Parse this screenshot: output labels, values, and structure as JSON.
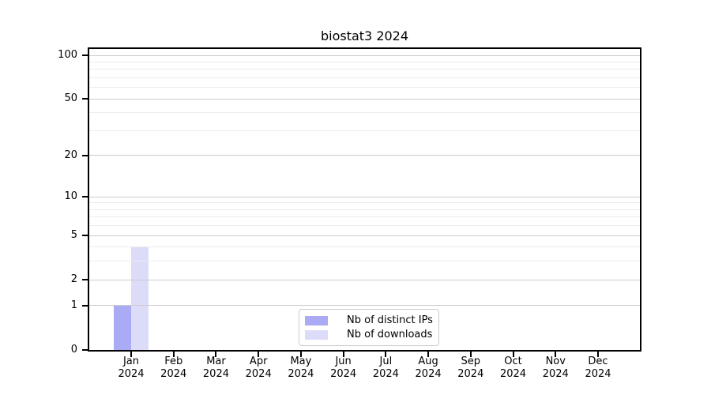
{
  "chart_data": {
    "type": "bar",
    "title": "biostat3 2024",
    "categories": [
      "Jan 2024",
      "Feb 2024",
      "Mar 2024",
      "Apr 2024",
      "May 2024",
      "Jun 2024",
      "Jul 2024",
      "Aug 2024",
      "Sep 2024",
      "Oct 2024",
      "Nov 2024",
      "Dec 2024"
    ],
    "series": [
      {
        "name": "Nb of distinct IPs",
        "color": "#aaaaf5",
        "values": [
          1,
          0,
          0,
          0,
          0,
          0,
          0,
          0,
          0,
          0,
          0,
          0
        ]
      },
      {
        "name": "Nb of downloads",
        "color": "#dcdcf9",
        "values": [
          4,
          0,
          0,
          0,
          0,
          0,
          0,
          0,
          0,
          0,
          0,
          0
        ]
      }
    ],
    "xlabel": "",
    "ylabel": "",
    "yscale": "log1p",
    "ylim": [
      0,
      100
    ],
    "yticks": [
      0,
      1,
      2,
      5,
      10,
      20,
      50,
      100
    ],
    "yticks_minor": [
      3,
      4,
      6,
      7,
      8,
      9,
      30,
      40,
      60,
      70,
      80,
      90
    ],
    "grid": true,
    "legend_position": "lower center",
    "colors": {
      "major_grid": "#cccccc",
      "minor_grid": "#ececec",
      "axis": "#000000",
      "background": "#ffffff"
    }
  }
}
